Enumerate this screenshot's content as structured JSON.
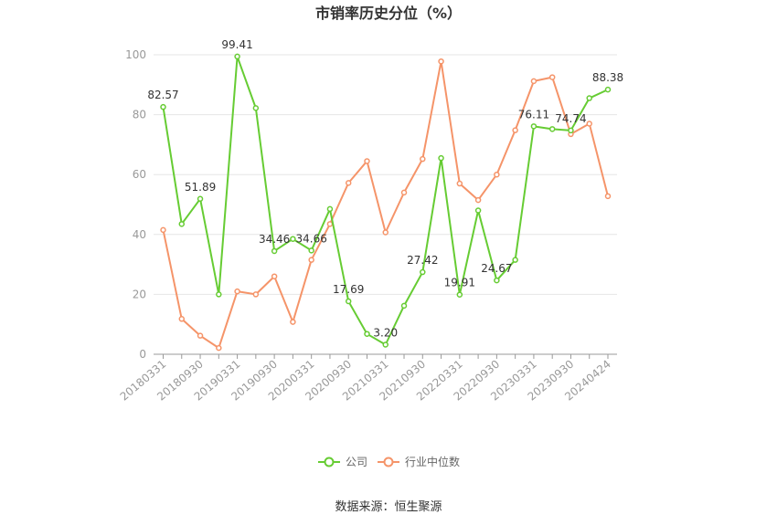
{
  "chart_data": {
    "type": "line",
    "title": "市销率历史分位（%）",
    "ylim": [
      0,
      100
    ],
    "yticks": [
      0,
      20,
      40,
      60,
      80,
      100
    ],
    "xticklabels": [
      "20180331",
      "20180930",
      "20190331",
      "20190930",
      "20200331",
      "20200930",
      "20210331",
      "20210930",
      "20220331",
      "20220930",
      "20230331",
      "20230930",
      "20240424"
    ],
    "series": [
      {
        "name": "公司",
        "color": "#66cc33",
        "values": [
          82.57,
          43.5,
          51.89,
          20.0,
          99.41,
          82.2,
          34.46,
          38.5,
          34.66,
          48.5,
          17.69,
          6.8,
          3.2,
          16.2,
          27.42,
          65.5,
          19.91,
          48.0,
          24.67,
          31.5,
          76.11,
          75.2,
          74.74,
          85.5,
          88.38
        ]
      },
      {
        "name": "行业中位数",
        "color": "#f59469",
        "values": [
          41.5,
          11.8,
          6.2,
          2.1,
          21.0,
          20.0,
          26.0,
          10.8,
          31.5,
          43.5,
          57.2,
          64.5,
          40.7,
          54.0,
          65.2,
          97.8,
          57.0,
          51.5,
          60.0,
          74.8,
          91.2,
          92.5,
          73.5,
          77.0,
          52.8
        ]
      }
    ],
    "data_labels": [
      {
        "index": 0,
        "text": "82.57"
      },
      {
        "index": 2,
        "text": "51.89"
      },
      {
        "index": 4,
        "text": "99.41"
      },
      {
        "index": 6,
        "text": "34.46"
      },
      {
        "index": 8,
        "text": "34.66"
      },
      {
        "index": 10,
        "text": "17.69"
      },
      {
        "index": 12,
        "text": "3.20"
      },
      {
        "index": 14,
        "text": "27.42"
      },
      {
        "index": 16,
        "text": "19.91"
      },
      {
        "index": 18,
        "text": "24.67"
      },
      {
        "index": 20,
        "text": "76.11"
      },
      {
        "index": 22,
        "text": "74.74"
      },
      {
        "index": 24,
        "text": "88.38"
      }
    ],
    "legend_position": "bottom",
    "grid": true
  },
  "footer": {
    "source": "数据来源：恒生聚源"
  }
}
